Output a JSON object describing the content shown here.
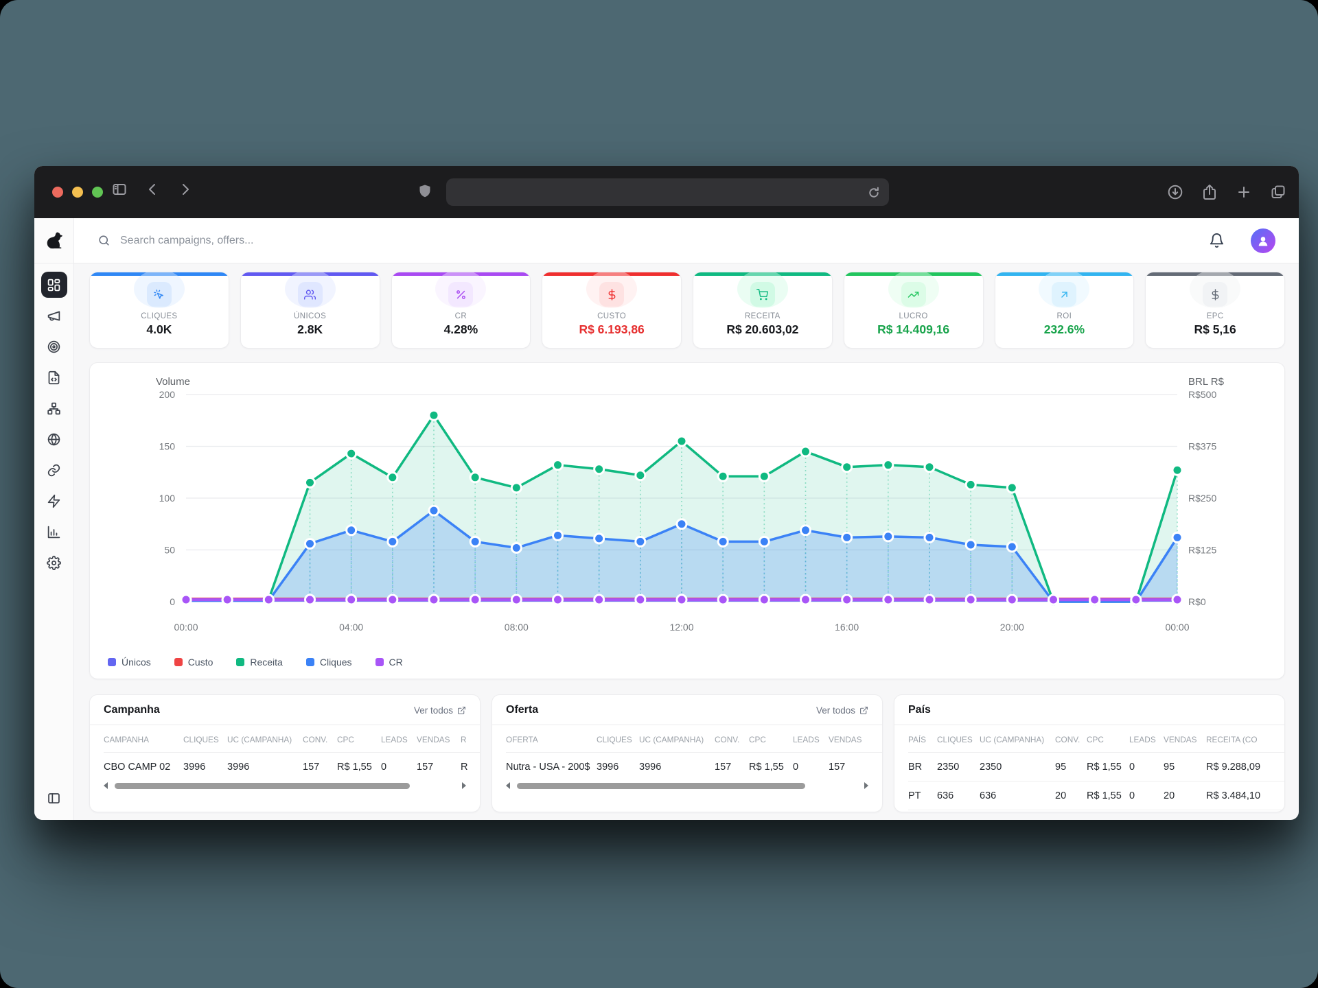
{
  "browser": {
    "traffic_lights": [
      "#ec6a5e",
      "#f4bf50",
      "#61c554"
    ],
    "left_icons": [
      "sidebar-toggle-icon",
      "back-icon",
      "forward-icon"
    ],
    "url_icons": [
      "shield-icon",
      "reload-icon"
    ],
    "right_icons": [
      "download-icon",
      "share-icon",
      "new-tab-icon",
      "tab-overview-icon"
    ]
  },
  "sidebar": {
    "logo": "dog-logo",
    "items": [
      {
        "name": "dashboard",
        "active": true
      },
      {
        "name": "campaigns-megaphone",
        "active": false
      },
      {
        "name": "offers-target",
        "active": false
      },
      {
        "name": "landers-file-code",
        "active": false
      },
      {
        "name": "flows-network",
        "active": false
      },
      {
        "name": "domains-globe",
        "active": false
      },
      {
        "name": "links",
        "active": false
      },
      {
        "name": "automation-zap",
        "active": false
      },
      {
        "name": "reports-bar-chart",
        "active": false
      },
      {
        "name": "settings-gear",
        "active": false
      }
    ],
    "bottom_icon": "collapse-panel"
  },
  "topbar": {
    "search_placeholder": "Search campaigns, offers...",
    "right_icons": [
      "bell-icon",
      "user-avatar"
    ]
  },
  "kpis": [
    {
      "label": "CLIQUES",
      "value": "4.0K",
      "icon": "cursor-click",
      "accent": "#2f87f5",
      "chip_bg": "#dbeafe",
      "value_color": "#16181c"
    },
    {
      "label": "ÚNICOS",
      "value": "2.8K",
      "icon": "users",
      "accent": "#6159f1",
      "chip_bg": "#e0e7ff",
      "value_color": "#16181c"
    },
    {
      "label": "CR",
      "value": "4.28%",
      "icon": "percent",
      "accent": "#a94af2",
      "chip_bg": "#f3e8ff",
      "value_color": "#16181c"
    },
    {
      "label": "CUSTO",
      "value": "R$ 6.193,86",
      "icon": "dollar",
      "accent": "#ef2f2f",
      "chip_bg": "#fee2e2",
      "value_color": "#e62e2e"
    },
    {
      "label": "RECEITA",
      "value": "R$ 20.603,02",
      "icon": "shopping-cart",
      "accent": "#10b981",
      "chip_bg": "#d1fae5",
      "value_color": "#16181c"
    },
    {
      "label": "LUCRO",
      "value": "R$ 14.409,16",
      "icon": "trending-up",
      "accent": "#22c55e",
      "chip_bg": "#dcfce7",
      "value_color": "#17a34a"
    },
    {
      "label": "ROI",
      "value": "232.6%",
      "icon": "arrow-up-right",
      "accent": "#32b4f0",
      "chip_bg": "#dff3fe",
      "value_color": "#17a34a"
    },
    {
      "label": "EPC",
      "value": "R$ 5,16",
      "icon": "dollar",
      "accent": "#646b76",
      "chip_bg": "#f1f3f5",
      "value_color": "#16181c"
    }
  ],
  "chart_data": {
    "type": "line",
    "x": [
      "00:00",
      "01:00",
      "02:00",
      "03:00",
      "04:00",
      "05:00",
      "06:00",
      "07:00",
      "08:00",
      "09:00",
      "10:00",
      "11:00",
      "12:00",
      "13:00",
      "14:00",
      "15:00",
      "16:00",
      "17:00",
      "18:00",
      "19:00",
      "20:00",
      "21:00",
      "22:00",
      "23:00",
      "00:00"
    ],
    "x_tick_every": 4,
    "left_axis": {
      "title": "Volume",
      "max": 200,
      "ticks": [
        0,
        50,
        100,
        150,
        200
      ]
    },
    "right_axis": {
      "title": "BRL R$",
      "ticks": [
        "R$0",
        "R$125",
        "R$250",
        "R$375",
        "R$500"
      ]
    },
    "grid": true,
    "legend_position": "bottom",
    "series": [
      {
        "name": "Únicos",
        "color": "#6366f1",
        "width": 2.5,
        "area": false,
        "markers": false,
        "stems": false,
        "values": [
          1,
          1,
          1,
          1,
          1,
          1,
          1,
          1,
          1,
          1,
          1,
          1,
          1,
          1,
          1,
          1,
          1,
          1,
          1,
          1,
          1,
          1,
          1,
          1,
          1
        ]
      },
      {
        "name": "Custo",
        "color": "#ef4444",
        "width": 3,
        "area": false,
        "markers": false,
        "stems": false,
        "values": [
          3,
          3,
          3,
          3,
          3,
          3,
          3,
          3,
          3,
          3,
          3,
          3,
          3,
          3,
          3,
          3,
          3,
          3,
          3,
          3,
          3,
          3,
          3,
          3,
          3
        ]
      },
      {
        "name": "Receita",
        "color": "#10b981",
        "width": 3.5,
        "area": true,
        "area_opacity": 0.13,
        "markers": true,
        "stems": true,
        "values": [
          2,
          2,
          2,
          115,
          143,
          120,
          180,
          120,
          110,
          132,
          128,
          122,
          155,
          121,
          121,
          145,
          130,
          132,
          130,
          113,
          110,
          0,
          0,
          0,
          127
        ]
      },
      {
        "name": "Cliques",
        "color": "#3b82f6",
        "width": 3.5,
        "area": true,
        "area_opacity": 0.24,
        "markers": true,
        "stems": true,
        "values": [
          1,
          1,
          1,
          56,
          69,
          58,
          88,
          58,
          52,
          64,
          61,
          58,
          75,
          58,
          58,
          69,
          62,
          63,
          62,
          55,
          53,
          0,
          0,
          0,
          62
        ]
      },
      {
        "name": "CR",
        "color": "#a855f7",
        "width": 4.5,
        "area": false,
        "markers": true,
        "stems": false,
        "values": [
          2,
          2,
          2,
          2,
          2,
          2,
          2,
          2,
          2,
          2,
          2,
          2,
          2,
          2,
          2,
          2,
          2,
          2,
          2,
          2,
          2,
          2,
          2,
          2,
          2
        ]
      }
    ]
  },
  "tables": {
    "campanha": {
      "title": "Campanha",
      "link": "Ver todos",
      "headers": [
        "CAMPANHA",
        "CLIQUES",
        "UC (CAMPANHA)",
        "CONV.",
        "CPC",
        "LEADS",
        "VENDAS",
        "R"
      ],
      "rows": [
        [
          "CBO CAMP 02",
          "3996",
          "3996",
          "157",
          "R$ 1,55",
          "0",
          "157",
          "R"
        ]
      ]
    },
    "oferta": {
      "title": "Oferta",
      "link": "Ver todos",
      "headers": [
        "OFERTA",
        "CLIQUES",
        "UC (CAMPANHA)",
        "CONV.",
        "CPC",
        "LEADS",
        "VENDAS"
      ],
      "rows": [
        [
          "Nutra - USA - 200$",
          "3996",
          "3996",
          "157",
          "R$ 1,55",
          "0",
          "157"
        ]
      ]
    },
    "pais": {
      "title": "País",
      "headers": [
        "PAÍS",
        "CLIQUES",
        "UC (CAMPANHA)",
        "CONV.",
        "CPC",
        "LEADS",
        "VENDAS",
        "RECEITA (CO"
      ],
      "rows": [
        [
          "BR",
          "2350",
          "2350",
          "95",
          "R$ 1,55",
          "0",
          "95",
          "R$ 9.288,09"
        ],
        [
          "PT",
          "636",
          "636",
          "20",
          "R$ 1,55",
          "0",
          "20",
          "R$ 3.484,10"
        ]
      ]
    }
  }
}
